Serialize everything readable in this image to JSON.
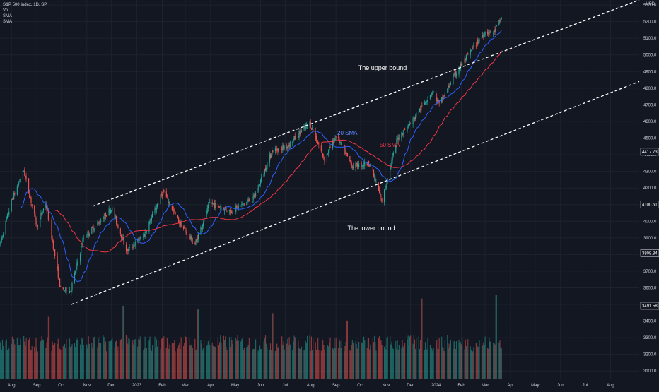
{
  "header": {
    "title": "S&P 500 Index, 1D, SP",
    "legend_lines": [
      "Vol",
      "SMA",
      "SMA"
    ],
    "currency": "USD"
  },
  "colors": {
    "background": "#131722",
    "grid": "#1e222d",
    "up": "#26a69a",
    "down": "#ef5350",
    "sma20": "#2962ff",
    "sma50": "#f23645",
    "text": "#d1d4dc",
    "channel": "#ffffff"
  },
  "annotations": {
    "upper_bound": "The upper bound",
    "lower_bound": "The lower bound",
    "sma20": "20 SMA",
    "sma50": "50 SMA"
  },
  "chart_data": {
    "type": "candlestick",
    "title": "S&P 500 Index, 1D, SP",
    "y_axis": {
      "ticks": [
        3100,
        3200,
        3300,
        3400,
        3500,
        3600,
        3700,
        3800,
        3900,
        4000,
        4100,
        4200,
        4300,
        4400,
        4500,
        4600,
        4700,
        4800,
        4900,
        5000,
        5100,
        5200,
        5300
      ],
      "ylim": [
        3050,
        5330
      ],
      "price_labels": [
        {
          "text": "4417.73",
          "value": 4417.73
        },
        {
          "text": "4100.51",
          "value": 4100.51
        },
        {
          "text": "3808.84",
          "value": 3808.84
        },
        {
          "text": "3491.58",
          "value": 3491.58
        }
      ]
    },
    "x_axis": {
      "labels": [
        "Aug",
        "Sep",
        "Oct",
        "Nov",
        "Dec",
        "2023",
        "Feb",
        "Mar",
        "Apr",
        "May",
        "Jun",
        "Jul",
        "Aug",
        "Sep",
        "Oct",
        "Nov",
        "Dec",
        "2024",
        "Feb",
        "Mar",
        "Apr",
        "May",
        "Jun",
        "Jul",
        "Aug"
      ],
      "xlim": [
        "2022-07-18",
        "2024-09-05"
      ]
    },
    "price_anchors": [
      {
        "date": "2022-07-18",
        "close": 3860
      },
      {
        "date": "2022-08-01",
        "close": 4120
      },
      {
        "date": "2022-08-16",
        "close": 4305
      },
      {
        "date": "2022-09-01",
        "close": 3970
      },
      {
        "date": "2022-09-12",
        "close": 4110
      },
      {
        "date": "2022-09-30",
        "close": 3590
      },
      {
        "date": "2022-10-12",
        "close": 3580
      },
      {
        "date": "2022-10-28",
        "close": 3900
      },
      {
        "date": "2022-11-15",
        "close": 3990
      },
      {
        "date": "2022-12-01",
        "close": 4080
      },
      {
        "date": "2022-12-20",
        "close": 3820
      },
      {
        "date": "2023-01-10",
        "close": 3920
      },
      {
        "date": "2023-02-02",
        "close": 4180
      },
      {
        "date": "2023-02-22",
        "close": 3990
      },
      {
        "date": "2023-03-13",
        "close": 3860
      },
      {
        "date": "2023-03-31",
        "close": 4110
      },
      {
        "date": "2023-04-26",
        "close": 4060
      },
      {
        "date": "2023-05-24",
        "close": 4140
      },
      {
        "date": "2023-06-15",
        "close": 4425
      },
      {
        "date": "2023-07-03",
        "close": 4450
      },
      {
        "date": "2023-07-31",
        "close": 4590
      },
      {
        "date": "2023-08-18",
        "close": 4370
      },
      {
        "date": "2023-09-01",
        "close": 4515
      },
      {
        "date": "2023-09-21",
        "close": 4330
      },
      {
        "date": "2023-10-12",
        "close": 4350
      },
      {
        "date": "2023-10-27",
        "close": 4120
      },
      {
        "date": "2023-11-15",
        "close": 4500
      },
      {
        "date": "2023-12-01",
        "close": 4590
      },
      {
        "date": "2023-12-28",
        "close": 4785
      },
      {
        "date": "2024-01-05",
        "close": 4700
      },
      {
        "date": "2024-01-24",
        "close": 4880
      },
      {
        "date": "2024-02-12",
        "close": 5020
      },
      {
        "date": "2024-03-01",
        "close": 5140
      },
      {
        "date": "2024-03-11",
        "close": 5130
      },
      {
        "date": "2024-03-21",
        "close": 5220
      }
    ],
    "series": [
      {
        "name": "20 SMA",
        "window": 20
      },
      {
        "name": "50 SMA",
        "window": 50
      }
    ],
    "volume": {
      "unit": "relative",
      "spikes": [
        {
          "date": "2022-09-16",
          "value": 0.85
        },
        {
          "date": "2022-12-16",
          "value": 1.0
        },
        {
          "date": "2023-03-17",
          "value": 0.95
        },
        {
          "date": "2023-06-16",
          "value": 0.9
        },
        {
          "date": "2023-09-15",
          "value": 0.8
        },
        {
          "date": "2023-12-15",
          "value": 1.1
        },
        {
          "date": "2024-03-15",
          "value": 1.15
        }
      ]
    },
    "channel_lines": [
      {
        "name": "upper",
        "from": {
          "date": "2022-11-08",
          "price": 4090
        },
        "to": {
          "date": "2024-09-05",
          "price": 5330
        }
      },
      {
        "name": "lower",
        "from": {
          "date": "2022-10-13",
          "price": 3500
        },
        "to": {
          "date": "2024-09-05",
          "price": 4840
        }
      }
    ],
    "grid": true,
    "legend_position": "top-left"
  }
}
